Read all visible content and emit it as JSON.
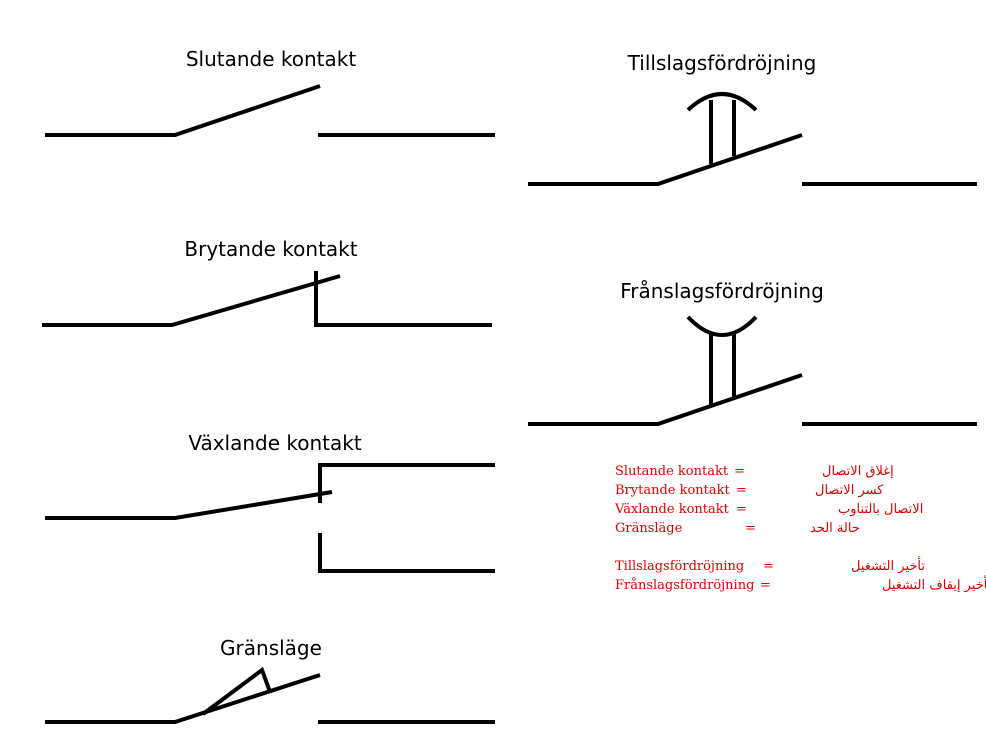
{
  "symbols": {
    "slutande": {
      "title": "Slutande kontakt"
    },
    "brytande": {
      "title": "Brytande kontakt"
    },
    "vaxlande": {
      "title": "Växlande kontakt"
    },
    "granslage": {
      "title": "Gränsläge"
    },
    "tillslag": {
      "title": "Tillslagsfördröjning"
    },
    "franslag": {
      "title": "Frånslagsfördröjning"
    }
  },
  "legend": {
    "rows": [
      {
        "sv": "Slutande kontakt",
        "eq": "=",
        "ar": "إغلاق الاتصال"
      },
      {
        "sv": "Brytande kontakt",
        "eq": "=",
        "ar": "كسر الاتصال"
      },
      {
        "sv": "Växlande kontakt",
        "eq": "=",
        "ar": "الاتصال بالتناوب"
      },
      {
        "sv": "Gränsläge",
        "eq": "=",
        "ar": "حالة الحد"
      },
      {
        "sv": "Tillslagsfördröjning",
        "eq": "=",
        "ar": "تأخير التشغيل"
      },
      {
        "sv": "Frånslagsfördröjning",
        "eq": "=",
        "ar": "تأخير إيقاف التشغيل"
      }
    ]
  },
  "colors": {
    "line": "#000000",
    "legend_text": "#e00000"
  }
}
